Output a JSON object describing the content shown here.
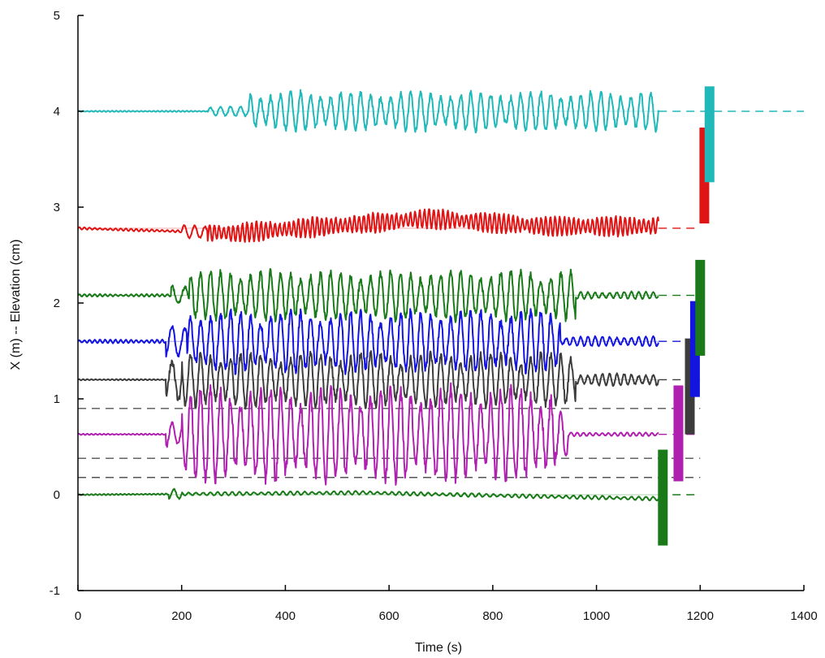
{
  "chart_data": {
    "type": "line",
    "title": "",
    "xlabel": "Time (s)",
    "ylabel": "X (m) -- Elevation (cm)",
    "xlim": [
      0,
      1400
    ],
    "ylim": [
      -1,
      5
    ],
    "xticks": [
      0,
      200,
      400,
      600,
      800,
      1000,
      1200,
      1400
    ],
    "yticks": [
      -1,
      0,
      1,
      2,
      3,
      4,
      5
    ],
    "grid": false,
    "legend": "none",
    "series": [
      {
        "color": "#1a7a1a",
        "baseline": 0.0,
        "start": 0,
        "end": 1120,
        "segments": [
          {
            "t0": 0,
            "t1": 175,
            "amp": 0.005,
            "period": 8
          },
          {
            "t0": 175,
            "t1": 200,
            "amp": 0.04,
            "period": 20
          },
          {
            "t0": 200,
            "t1": 1120,
            "amp": 0.015,
            "period": 14
          }
        ],
        "drift": [
          {
            "t": 550,
            "v": 0.02
          },
          {
            "t": 1100,
            "v": -0.04
          }
        ],
        "dash_to": 1200,
        "bar": {
          "x": 1128,
          "y0": -0.53,
          "y1": 0.47
        }
      },
      {
        "color": "#b020b0",
        "baseline": 0.63,
        "start": 0,
        "end": 1120,
        "segments": [
          {
            "t0": 0,
            "t1": 170,
            "amp": 0.005,
            "period": 8
          },
          {
            "t0": 170,
            "t1": 200,
            "amp": 0.12,
            "period": 22
          },
          {
            "t0": 200,
            "t1": 920,
            "amp": 0.38,
            "period": 19.3
          },
          {
            "t0": 920,
            "t1": 945,
            "amp": 0.2,
            "period": 19.3
          },
          {
            "t0": 945,
            "t1": 1120,
            "amp": 0.015,
            "period": 12
          }
        ],
        "dash_to": 1200,
        "bar": {
          "x": 1158,
          "y0": 0.14,
          "y1": 1.14
        }
      },
      {
        "color": "#3c3c3c",
        "baseline": 1.2,
        "start": 0,
        "end": 1120,
        "segments": [
          {
            "t0": 0,
            "t1": 170,
            "amp": 0.005,
            "period": 8
          },
          {
            "t0": 170,
            "t1": 200,
            "amp": 0.18,
            "period": 25
          },
          {
            "t0": 200,
            "t1": 960,
            "amp": 0.22,
            "period": 19.3
          },
          {
            "t0": 960,
            "t1": 1120,
            "amp": 0.05,
            "period": 14
          }
        ],
        "dash_to": 1200,
        "bar": {
          "x": 1180,
          "y0": 0.63,
          "y1": 1.63
        }
      },
      {
        "color": "#1414e0",
        "baseline": 1.6,
        "start": 0,
        "end": 1120,
        "segments": [
          {
            "t0": 0,
            "t1": 170,
            "amp": 0.015,
            "period": 10
          },
          {
            "t0": 170,
            "t1": 210,
            "amp": 0.12,
            "period": 25
          },
          {
            "t0": 210,
            "t1": 930,
            "amp": 0.25,
            "period": 19.3
          },
          {
            "t0": 930,
            "t1": 1120,
            "amp": 0.04,
            "period": 14
          }
        ],
        "dash_to": 1200,
        "bar": {
          "x": 1190,
          "y0": 1.02,
          "y1": 2.02
        }
      },
      {
        "color": "#1a7a1a",
        "baseline": 2.08,
        "start": 0,
        "end": 1120,
        "segments": [
          {
            "t0": 0,
            "t1": 180,
            "amp": 0.01,
            "period": 10
          },
          {
            "t0": 180,
            "t1": 215,
            "amp": 0.1,
            "period": 25
          },
          {
            "t0": 215,
            "t1": 960,
            "amp": 0.2,
            "period": 19.3
          },
          {
            "t0": 960,
            "t1": 1120,
            "amp": 0.03,
            "period": 14
          }
        ],
        "dash_to": 1200,
        "bar": {
          "x": 1200,
          "y0": 1.45,
          "y1": 2.45
        }
      },
      {
        "color": "#e01414",
        "baseline": 2.78,
        "start": 0,
        "end": 1120,
        "segments": [
          {
            "t0": 0,
            "t1": 200,
            "amp": 0.01,
            "period": 10
          },
          {
            "t0": 200,
            "t1": 250,
            "amp": 0.05,
            "period": 20
          },
          {
            "t0": 250,
            "t1": 1120,
            "amp": 0.08,
            "period": 9
          }
        ],
        "drift": [
          {
            "t": 300,
            "v": -0.05
          },
          {
            "t": 680,
            "v": 0.1
          },
          {
            "t": 900,
            "v": 0.02
          }
        ],
        "dash_to": 1200,
        "bar": {
          "x": 1208,
          "y0": 2.83,
          "y1": 3.83
        }
      },
      {
        "color": "#20b8b8",
        "baseline": 4.0,
        "start": 0,
        "end": 1120,
        "segments": [
          {
            "t0": 0,
            "t1": 250,
            "amp": 0.005,
            "period": 8
          },
          {
            "t0": 250,
            "t1": 330,
            "amp": 0.04,
            "period": 19.3
          },
          {
            "t0": 330,
            "t1": 1120,
            "amp": 0.16,
            "period": 19.3
          }
        ],
        "dash_to": 1400,
        "bar": {
          "x": 1218,
          "y0": 3.26,
          "y1": 4.26
        }
      }
    ],
    "reference_lines": [
      {
        "y": 0.9,
        "x0": 0,
        "x1": 1200
      },
      {
        "y": 0.38,
        "x0": 0,
        "x1": 1200
      },
      {
        "y": 0.18,
        "x0": 0,
        "x1": 1200
      }
    ]
  }
}
